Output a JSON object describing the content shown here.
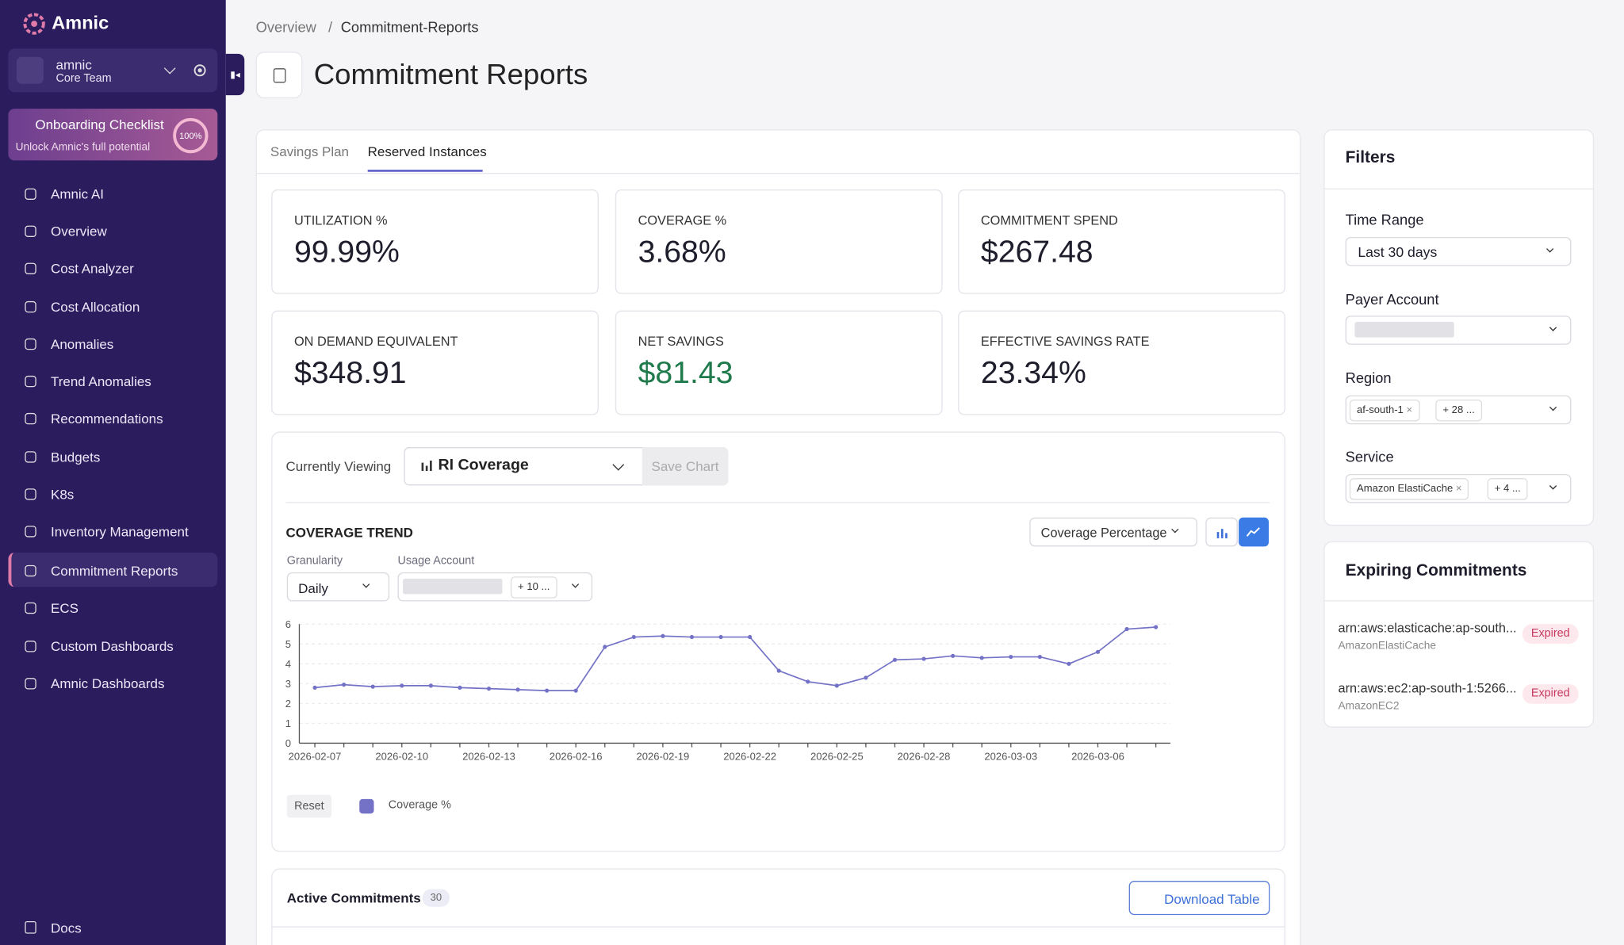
{
  "sidebar": {
    "brand": "Amnic",
    "org": {
      "name": "amnic",
      "team": "Core Team"
    },
    "onboarding": {
      "title": "Onboarding Checklist",
      "subtitle": "Unlock Amnic's full potential",
      "progress": "100%"
    },
    "nav": [
      "Amnic AI",
      "Overview",
      "Cost Analyzer",
      "Cost Allocation",
      "Anomalies",
      "Trend Anomalies",
      "Recommendations",
      "Budgets",
      "K8s",
      "Inventory Management",
      "Commitment Reports",
      "ECS",
      "Custom Dashboards",
      "Amnic Dashboards"
    ],
    "footer": "Docs"
  },
  "breadcrumb": [
    "Overview",
    "/",
    "Commitment-Reports"
  ],
  "title": "Commitment Reports",
  "tabs": [
    "Savings Plan",
    "Reserved Instances"
  ],
  "kpis": [
    {
      "label": "UTILIZATION %",
      "value": "99.99%"
    },
    {
      "label": "COVERAGE %",
      "value": "3.68%"
    },
    {
      "label": "COMMITMENT SPEND",
      "value": "$267.48"
    },
    {
      "label": "ON DEMAND EQUIVALENT",
      "value": "$348.91"
    },
    {
      "label": "NET SAVINGS",
      "value": "$81.43"
    },
    {
      "label": "EFFECTIVE SAVINGS RATE",
      "value": "23.34%"
    }
  ],
  "viewer": {
    "label": "Currently Viewing",
    "selected": "RI Coverage",
    "save": "Save Chart"
  },
  "chart_controls": {
    "metric": "Coverage Percentage",
    "granularity_label": "Granularity",
    "granularity": "Daily",
    "usage_account_label": "Usage Account",
    "usage_account_more": "+ 10 ...",
    "reset": "Reset"
  },
  "chart_data": {
    "type": "line",
    "title": "COVERAGE TREND",
    "categories": [
      "2026-02-07",
      null,
      null,
      "2026-02-10",
      null,
      null,
      "2026-02-13",
      null,
      null,
      "2026-02-16",
      null,
      null,
      "2026-02-19",
      null,
      null,
      "2026-02-22",
      null,
      null,
      "2026-02-25",
      null,
      null,
      "2026-02-28",
      null,
      null,
      "2026-03-03",
      null,
      null,
      "2026-03-06",
      null,
      null
    ],
    "series": [
      {
        "name": "Coverage %",
        "color": "#7472c6",
        "values": [
          2.8,
          2.95,
          2.85,
          2.9,
          2.9,
          2.8,
          2.75,
          2.7,
          2.65,
          2.65,
          4.85,
          5.35,
          5.4,
          5.35,
          5.35,
          5.35,
          3.65,
          3.1,
          2.9,
          3.3,
          4.2,
          4.25,
          4.4,
          4.3,
          4.35,
          4.35,
          4.0,
          4.6,
          5.75,
          5.85
        ]
      }
    ],
    "ylim": [
      0,
      6
    ],
    "yticks": [
      0,
      1,
      2,
      3,
      4,
      5,
      6
    ],
    "grid": true
  },
  "active_commitments": {
    "title": "Active Commitments",
    "count": 30,
    "download": "Download Table"
  },
  "filters": {
    "title": "Filters",
    "time_range": {
      "label": "Time Range",
      "value": "Last 30 days"
    },
    "payer_account": {
      "label": "Payer Account"
    },
    "region": {
      "label": "Region",
      "chip": "af-south-1",
      "more": "+ 28 ..."
    },
    "service": {
      "label": "Service",
      "chip": "Amazon ElastiCache",
      "more": "+ 4 ..."
    }
  },
  "expiring": {
    "title": "Expiring Commitments",
    "items": [
      {
        "arn": "arn:aws:elasticache:ap-south...",
        "service": "AmazonElastiCache",
        "status": "Expired"
      },
      {
        "arn": "arn:aws:ec2:ap-south-1:5266...",
        "service": "AmazonEC2",
        "status": "Expired"
      }
    ]
  }
}
